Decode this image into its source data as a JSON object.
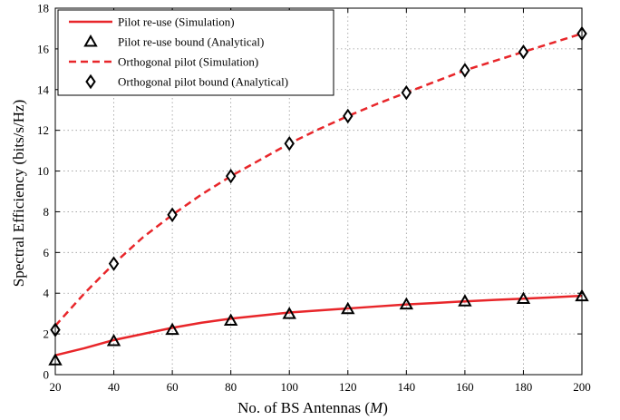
{
  "chart_data": {
    "type": "line",
    "title": "",
    "xlabel_prefix": "No. of BS Antennas (",
    "xlabel_var": "M",
    "xlabel_suffix": ")",
    "ylabel": "Spectral Efficiency (bits/s/Hz)",
    "xlim": [
      20,
      200
    ],
    "ylim": [
      0,
      18
    ],
    "xticks": [
      20,
      40,
      60,
      80,
      100,
      120,
      140,
      160,
      180,
      200
    ],
    "yticks": [
      0,
      2,
      4,
      6,
      8,
      10,
      12,
      14,
      16,
      18
    ],
    "grid": true,
    "legend_position": "top-left",
    "colors": {
      "simulation": "#e8262a",
      "marker": "#000000"
    },
    "series": [
      {
        "name": "Pilot re-use (Simulation)",
        "style": "solid-line",
        "x": [
          20,
          30,
          40,
          50,
          60,
          70,
          80,
          90,
          100,
          110,
          120,
          130,
          140,
          150,
          160,
          170,
          180,
          190,
          200
        ],
        "y": [
          0.95,
          1.3,
          1.7,
          2.0,
          2.3,
          2.55,
          2.75,
          2.9,
          3.05,
          3.15,
          3.25,
          3.35,
          3.45,
          3.52,
          3.6,
          3.67,
          3.73,
          3.8,
          3.87
        ]
      },
      {
        "name": "Pilot re-use bound (Analytical)",
        "style": "triangle-marker",
        "x": [
          20,
          40,
          60,
          80,
          100,
          120,
          140,
          160,
          180,
          200
        ],
        "y": [
          0.7,
          1.65,
          2.2,
          2.65,
          2.98,
          3.22,
          3.45,
          3.6,
          3.72,
          3.85
        ]
      },
      {
        "name": "Orthogonal pilot (Simulation)",
        "style": "dashed-line",
        "x": [
          20,
          30,
          40,
          50,
          60,
          70,
          80,
          90,
          100,
          110,
          120,
          130,
          140,
          150,
          160,
          170,
          180,
          190,
          200
        ],
        "y": [
          2.4,
          4.0,
          5.45,
          6.75,
          7.85,
          8.85,
          9.75,
          10.55,
          11.35,
          12.05,
          12.7,
          13.3,
          13.85,
          14.4,
          14.95,
          15.4,
          15.85,
          16.3,
          16.75
        ]
      },
      {
        "name": "Orthogonal pilot bound (Analytical)",
        "style": "diamond-marker",
        "x": [
          20,
          40,
          60,
          80,
          100,
          120,
          140,
          160,
          180,
          200
        ],
        "y": [
          2.2,
          5.45,
          7.85,
          9.75,
          11.35,
          12.7,
          13.85,
          14.95,
          15.85,
          16.75
        ]
      }
    ]
  }
}
